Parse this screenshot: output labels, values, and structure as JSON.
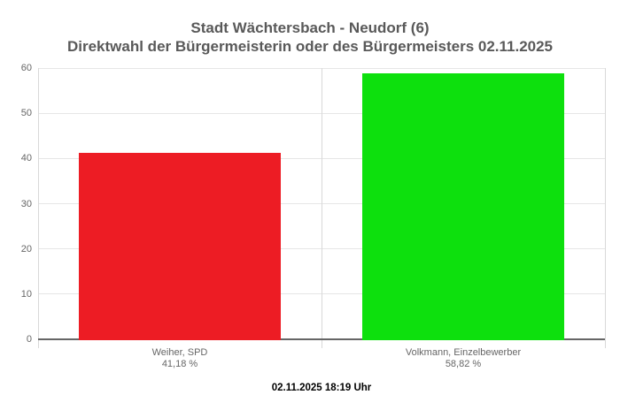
{
  "header": {
    "title": "Stadt Wächtersbach - Neudorf (6)",
    "subtitle": "Direktwahl der Bürgermeisterin oder des Bürgermeisters 02.11.2025"
  },
  "footer": {
    "timestamp": "02.11.2025 18:19 Uhr"
  },
  "colors": {
    "title_text": "#595959",
    "axis_text": "#666666",
    "gridline": "#e6e6e6",
    "boundary_line": "#d9d9d9",
    "axis_line": "#666666",
    "background": "#ffffff"
  },
  "chart_data": {
    "type": "bar",
    "title": "Stadt Wächtersbach - Neudorf (6)",
    "subtitle": "Direktwahl der Bürgermeisterin oder des Bürgermeisters 02.11.2025",
    "categories": [
      "Weiher, SPD",
      "Volkmann, Einzelbewerber"
    ],
    "values": [
      41.18,
      58.82
    ],
    "value_labels": [
      "41,18 %",
      "58,82 %"
    ],
    "bar_colors": [
      "#ed1c24",
      "#0de00d"
    ],
    "xlabel": "",
    "ylabel": "",
    "ylim": [
      0,
      60
    ],
    "yticks": [
      0,
      10,
      20,
      30,
      40,
      50,
      60
    ],
    "grid": true,
    "legend": false
  }
}
